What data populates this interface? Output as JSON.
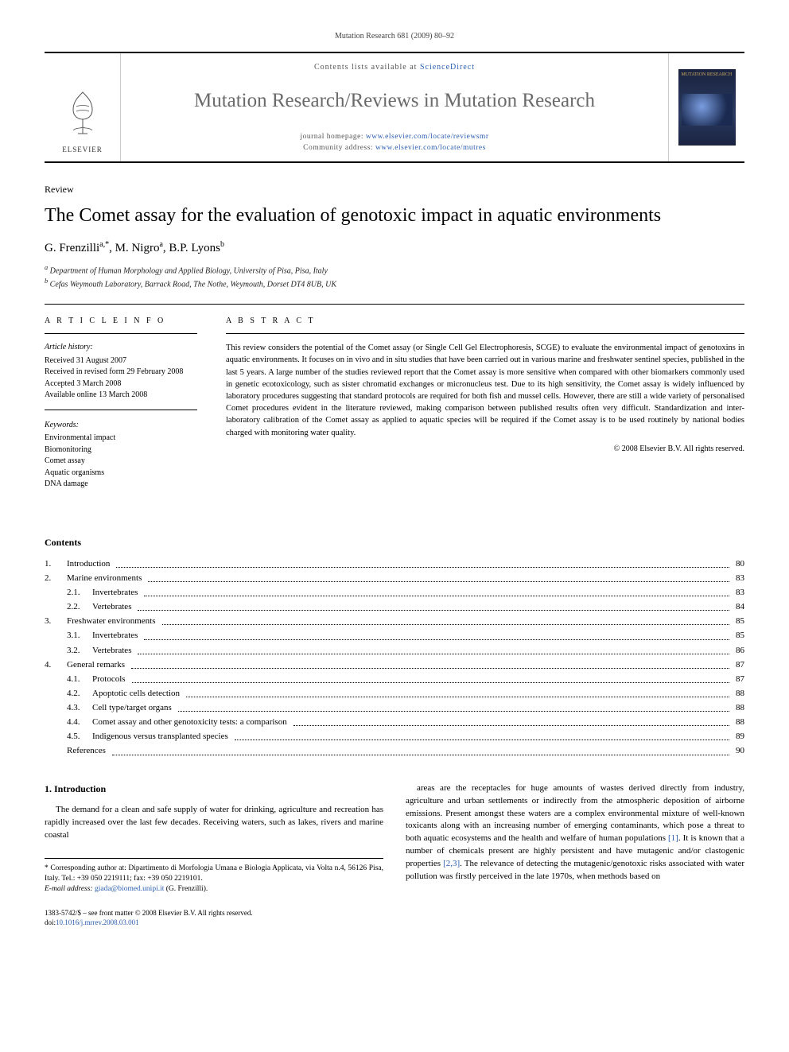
{
  "running_head": "Mutation Research 681 (2009) 80–92",
  "masthead": {
    "contents_prefix": "Contents lists available at ",
    "contents_link": "ScienceDirect",
    "journal_title": "Mutation Research/Reviews in Mutation Research",
    "homepage_label": "journal homepage: ",
    "homepage_url": "www.elsevier.com/locate/reviewsmr",
    "community_label": "Community address: ",
    "community_url": "www.elsevier.com/locate/mutres",
    "publisher_word": "ELSEVIER",
    "cover_title": "MUTATION RESEARCH"
  },
  "article": {
    "section_label": "Review",
    "title": "The Comet assay for the evaluation of genotoxic impact in aquatic environments",
    "authors_html": "G. Frenzilli",
    "author1": "G. Frenzilli",
    "author1_aff": "a,",
    "author1_corr": "*",
    "author2": ", M. Nigro",
    "author2_aff": "a",
    "author3": ", B.P. Lyons",
    "author3_aff": "b",
    "affiliations": {
      "a": "Department of Human Morphology and Applied Biology, University of Pisa, Pisa, Italy",
      "b": "Cefas Weymouth Laboratory, Barrack Road, The Nothe, Weymouth, Dorset DT4 8UB, UK"
    }
  },
  "info": {
    "heading": "A R T I C L E   I N F O",
    "history_head": "Article history:",
    "history": [
      "Received 31 August 2007",
      "Received in revised form 29 February 2008",
      "Accepted 3 March 2008",
      "Available online 13 March 2008"
    ],
    "keywords_head": "Keywords:",
    "keywords": [
      "Environmental impact",
      "Biomonitoring",
      "Comet assay",
      "Aquatic organisms",
      "DNA damage"
    ]
  },
  "abstract": {
    "heading": "A B S T R A C T",
    "text": "This review considers the potential of the Comet assay (or Single Cell Gel Electrophoresis, SCGE) to evaluate the environmental impact of genotoxins in aquatic environments. It focuses on in vivo and in situ studies that have been carried out in various marine and freshwater sentinel species, published in the last 5 years. A large number of the studies reviewed report that the Comet assay is more sensitive when compared with other biomarkers commonly used in genetic ecotoxicology, such as sister chromatid exchanges or micronucleus test. Due to its high sensitivity, the Comet assay is widely influenced by laboratory procedures suggesting that standard protocols are required for both fish and mussel cells. However, there are still a wide variety of personalised Comet procedures evident in the literature reviewed, making comparison between published results often very difficult. Standardization and inter-laboratory calibration of the Comet assay as applied to aquatic species will be required if the Comet assay is to be used routinely by national bodies charged with monitoring water quality.",
    "copyright": "© 2008 Elsevier B.V. All rights reserved."
  },
  "contents": {
    "heading": "Contents",
    "items": [
      {
        "num": "1.",
        "label": "Introduction",
        "page": "80",
        "sub": []
      },
      {
        "num": "2.",
        "label": "Marine environments",
        "page": "83",
        "sub": [
          {
            "num": "2.1.",
            "label": "Invertebrates",
            "page": "83"
          },
          {
            "num": "2.2.",
            "label": "Vertebrates",
            "page": "84"
          }
        ]
      },
      {
        "num": "3.",
        "label": "Freshwater environments",
        "page": "85",
        "sub": [
          {
            "num": "3.1.",
            "label": "Invertebrates",
            "page": "85"
          },
          {
            "num": "3.2.",
            "label": "Vertebrates",
            "page": "86"
          }
        ]
      },
      {
        "num": "4.",
        "label": "General remarks",
        "page": "87",
        "sub": [
          {
            "num": "4.1.",
            "label": "Protocols",
            "page": "87"
          },
          {
            "num": "4.2.",
            "label": "Apoptotic cells detection",
            "page": "88"
          },
          {
            "num": "4.3.",
            "label": "Cell type/target organs",
            "page": "88"
          },
          {
            "num": "4.4.",
            "label": "Comet assay and other genotoxicity tests: a comparison",
            "page": "88"
          },
          {
            "num": "4.5.",
            "label": "Indigenous versus transplanted species",
            "page": "89"
          }
        ]
      },
      {
        "num": "",
        "label": "References",
        "page": "90",
        "sub": []
      }
    ]
  },
  "body": {
    "h1": "1. Introduction",
    "col1": "The demand for a clean and safe supply of water for drinking, agriculture and recreation has rapidly increased over the last few decades. Receiving waters, such as lakes, rivers and marine coastal",
    "col2_a": "areas are the receptacles for huge amounts of wastes derived directly from industry, agriculture and urban settlements or indirectly from the atmospheric deposition of airborne emissions. Present amongst these waters are a complex environmental mixture of well-known toxicants along with an increasing number of emerging contaminants, which pose a threat to both aquatic ecosystems and the health and welfare of human populations ",
    "ref1": "[1]",
    "col2_b": ". It is known that a number of chemicals present are highly persistent and have mutagenic and/or clastogenic properties ",
    "ref23": "[2,3]",
    "col2_c": ". The relevance of detecting the mutagenic/genotoxic risks associated with water pollution was firstly perceived in the late 1970s, when methods based on"
  },
  "footnotes": {
    "corr": "* Corresponding author at: Dipartimento di Morfologia Umana e Biologia Applicata, via Volta n.4, 56126 Pisa, Italy. Tel.: +39 050 2219111; fax: +39 050 2219101.",
    "email_label": "E-mail address: ",
    "email": "giada@biomed.unipi.it",
    "email_who": " (G. Frenzilli)."
  },
  "footer": {
    "issn": "1383-5742/$ – see front matter © 2008 Elsevier B.V. All rights reserved.",
    "doi_label": "doi:",
    "doi": "10.1016/j.mrrev.2008.03.001"
  },
  "colors": {
    "link": "#2a5db0",
    "journal_grey": "#6a6a6a",
    "rule": "#000000"
  }
}
